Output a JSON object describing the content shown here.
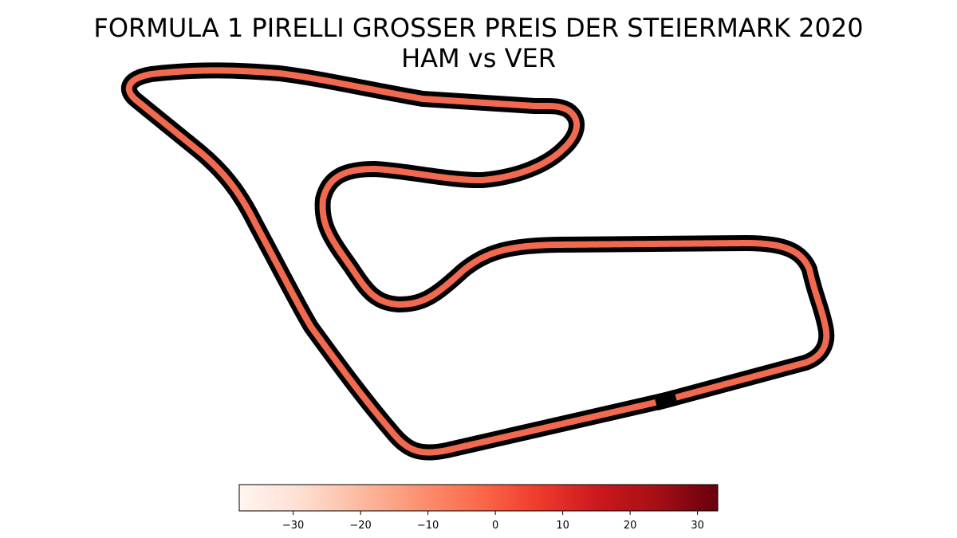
{
  "chart_data": {
    "type": "track-map",
    "title_line1": "FORMULA 1 PIRELLI GROSSER PREIS DER STEIERMARK 2020",
    "title_line2": "HAM vs VER",
    "colormap": "Reds",
    "colorbar": {
      "orientation": "horizontal",
      "range": [
        -38,
        33
      ],
      "ticks": [
        -30,
        -20,
        -10,
        0,
        10,
        20,
        30
      ]
    }
  }
}
